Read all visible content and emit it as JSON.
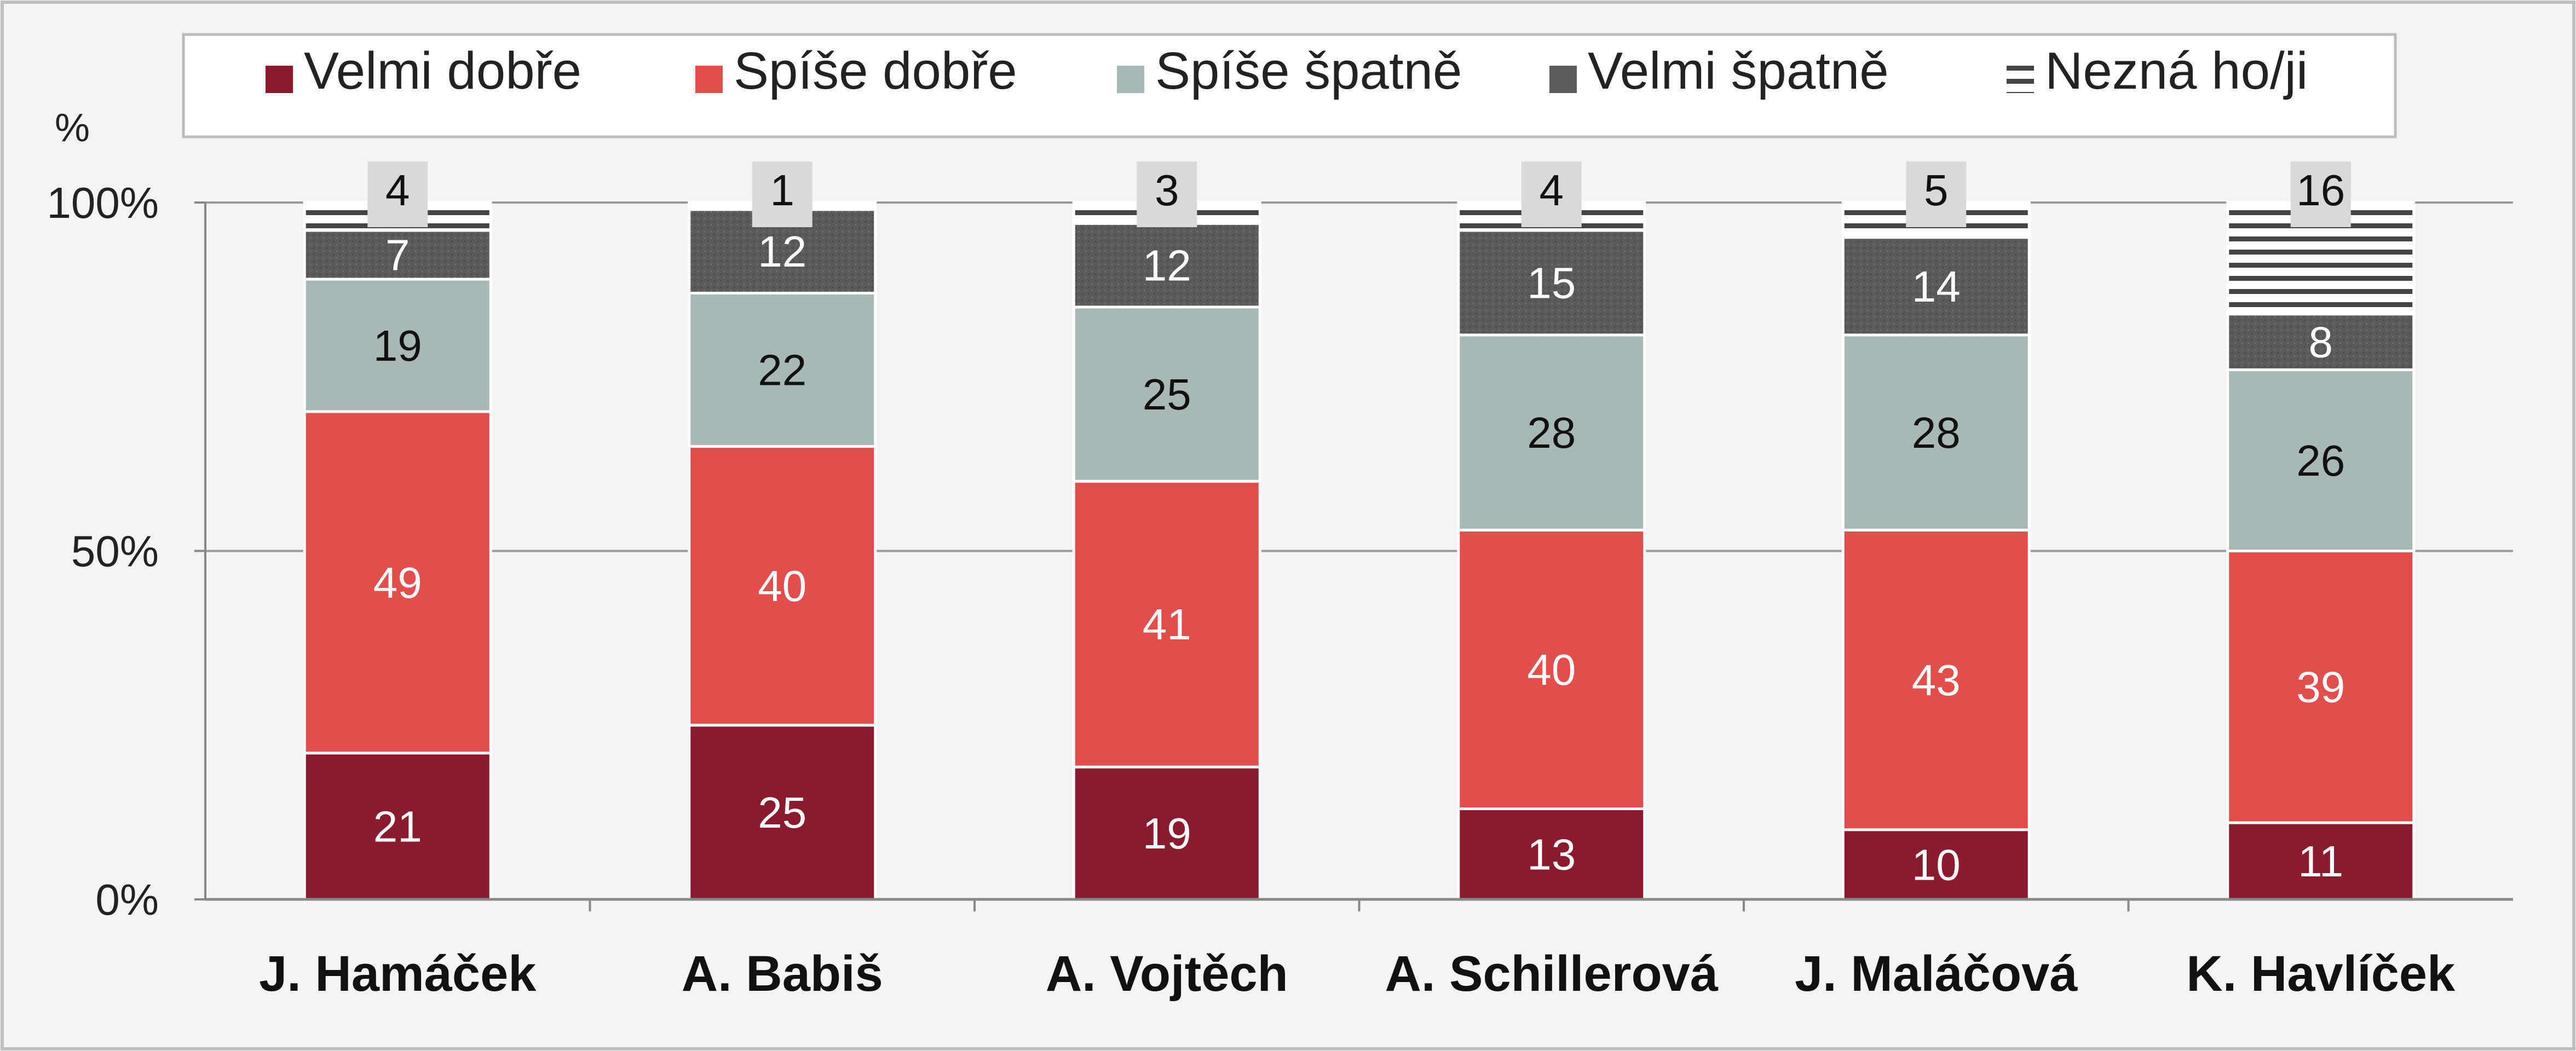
{
  "chart_data": {
    "type": "bar",
    "stacked": true,
    "orientation": "vertical",
    "ylabel": "%",
    "ylim": [
      0,
      100
    ],
    "yticks": [
      "0%",
      "50%",
      "100%"
    ],
    "grid": true,
    "legend_position": "top",
    "categories": [
      "J. Hamáček",
      "A. Babiš",
      "A. Vojtěch",
      "A. Schillerová",
      "J. Maláčová",
      "K. Havlíček"
    ],
    "series": [
      {
        "name": "Velmi dobře",
        "color": "#8B1A2E",
        "label_color": "#ffffff",
        "values": [
          21,
          25,
          19,
          13,
          10,
          11
        ]
      },
      {
        "name": "Spíše dobře",
        "color": "#E34D4C",
        "label_color": "#ffffff",
        "values": [
          49,
          40,
          41,
          40,
          43,
          39
        ]
      },
      {
        "name": "Spíše špatně",
        "color": "#A8B8B5",
        "label_color": "#111111",
        "values": [
          19,
          22,
          25,
          28,
          28,
          26
        ]
      },
      {
        "name": "Velmi špatně",
        "color": "#5A5A5A",
        "label_color": "#ffffff",
        "values": [
          7,
          12,
          12,
          15,
          14,
          8
        ]
      },
      {
        "name": "Nezná ho/ji",
        "color": "#FFFFFF",
        "stripe": "#444444",
        "label_color": "#111111",
        "values": [
          4,
          1,
          3,
          4,
          5,
          16
        ]
      }
    ]
  }
}
